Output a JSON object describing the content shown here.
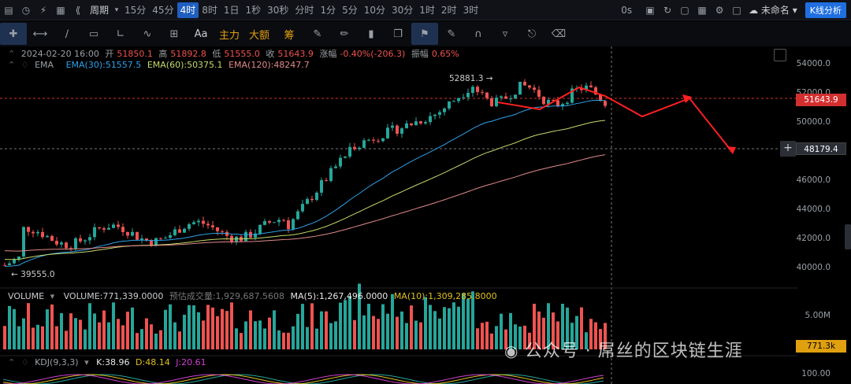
{
  "toolbar": {
    "periods": [
      "15分",
      "45分",
      "4时",
      "8时",
      "1日",
      "1秒",
      "30秒",
      "分时",
      "1分",
      "5分",
      "10分",
      "30分",
      "1时",
      "2时",
      "3时"
    ],
    "active_period": "4时",
    "period_label": "周期",
    "countdown": "0s",
    "layout_name": "未命名",
    "k_analysis": "K线分析"
  },
  "drawing_tools": {
    "text_tools": [
      "主力",
      "大额",
      "筹"
    ],
    "font_tool": "Aa"
  },
  "ohlc": {
    "datetime": "2024-02-20 16:00",
    "open_label": "开",
    "open": "51850.1",
    "high_label": "高",
    "high": "51892.8",
    "low_label": "低",
    "low": "51555.0",
    "close_label": "收",
    "close": "51643.9",
    "change_label": "涨幅",
    "change": "-0.40%(-206.3)",
    "amp_label": "振幅",
    "amp": "0.65%"
  },
  "ema": {
    "name": "EMA",
    "ema30": "EMA(30):51557.5",
    "ema60": "EMA(60):50375.1",
    "ema120": "EMA(120):48247.7"
  },
  "price_axis": [
    "54000.0",
    "52000.0",
    "50000.0",
    "48000.0",
    "46000.0",
    "44000.0",
    "42000.0",
    "40000.0"
  ],
  "current_price_tag": "51643.9",
  "crosshair_price_tag": "48179.4",
  "high_marker": "52881.3",
  "low_marker": "39555.0",
  "volume": {
    "name": "VOLUME",
    "value": "VOLUME:771,339.0000",
    "estimate": "预估成交量:1,929,687.5608",
    "ma5": "MA(5):1,267,496.0000",
    "ma10": "MA(10):1,309,285.8000",
    "axis_top": "5.00M",
    "axis_tag": "771.3k"
  },
  "kdj": {
    "name": "KDJ(9,3,3)",
    "k": "K:38.96",
    "d": "D:48.14",
    "j": "J:20.61",
    "axis_top": "100.00"
  },
  "watermark": "公众号 · 屌丝的区块链生涯",
  "colors": {
    "up": "#26a69a",
    "down": "#ef5350",
    "ema30": "#2ea1e8",
    "ema60": "#c6d96a",
    "ema120": "#e08a8a",
    "accent": "#1f6fe0",
    "arrow": "#ff2020"
  },
  "chart_data": {
    "type": "candlestick",
    "ylim": [
      39000,
      55000
    ],
    "ohlc_shape": "rising from ~39555 low, consolidating 42000-43000, breakout to 52881.3 high, last close 51643.9",
    "last_close": 51643.9,
    "high": 52881.3,
    "low": 39555.0
  }
}
